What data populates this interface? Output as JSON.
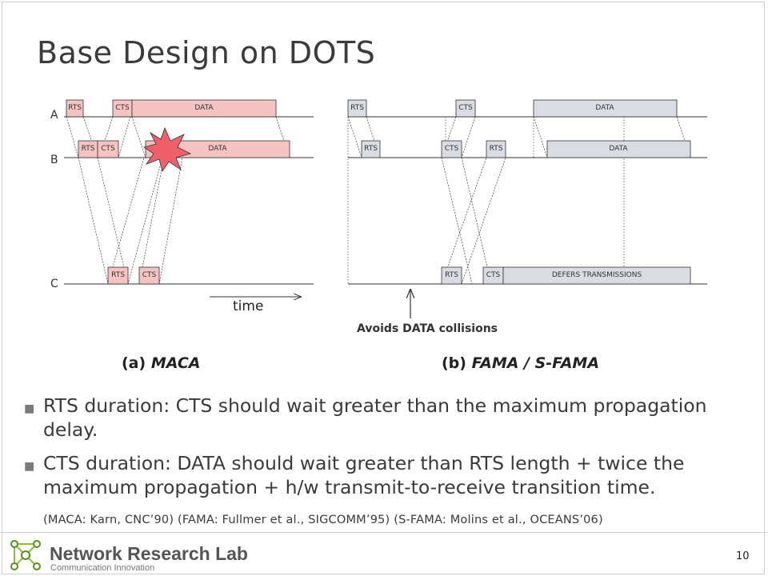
{
  "slide": {
    "title": "Base Design on DOTS",
    "page_number": "10"
  },
  "diagram": {
    "packet_labels": {
      "rts": "RTS",
      "cts": "CTS",
      "data": "DATA",
      "defers": "DEFERS TRANSMISSIONS"
    },
    "node_labels": [
      "A",
      "B",
      "C"
    ],
    "time_label": "time",
    "annotation": "Avoids DATA collisions",
    "caption_a_prefix": "(a) ",
    "caption_a_name": "MACA",
    "caption_b_prefix": "(b) ",
    "caption_b_name": "FAMA / S-FAMA",
    "colors": {
      "maca_fill": "#f6c3c3",
      "fama_fill": "#d9dce3",
      "collision": "#f0606a",
      "stroke": "#333333"
    }
  },
  "bullets": [
    "RTS duration: CTS should wait greater than the maximum propagation delay.",
    "CTS duration: DATA should wait greater than RTS length + twice the maximum propagation + h/w transmit-to-receive transition time."
  ],
  "reference": "(MACA: Karn, CNC’90)  (FAMA: Fullmer et al., SIGCOMM’95)  (S-FAMA: Molins et al., OCEANS’06)",
  "footer": {
    "lab_name": "Network Research Lab",
    "lab_subtitle": "Communication Innovation"
  }
}
